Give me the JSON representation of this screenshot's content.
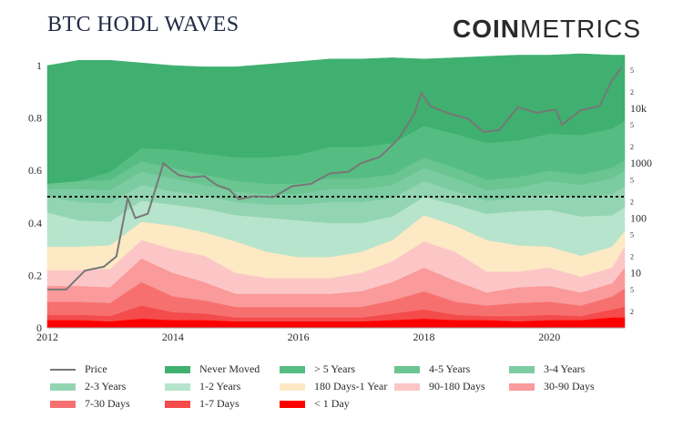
{
  "header": {
    "title": "BTC HODL WAVES",
    "brand_bold": "COIN",
    "brand_light": "METRICS"
  },
  "chart_data": {
    "type": "area",
    "title": "BTC HODL WAVES",
    "x": [
      2012.0,
      2012.5,
      2013.0,
      2013.5,
      2014.0,
      2014.5,
      2015.0,
      2015.5,
      2016.0,
      2016.5,
      2017.0,
      2017.5,
      2018.0,
      2018.5,
      2019.0,
      2019.5,
      2020.0,
      2020.5,
      2021.0,
      2021.2
    ],
    "xticks": [
      "2012",
      "2014",
      "2016",
      "2018",
      "2020"
    ],
    "xtick_values": [
      2012,
      2014,
      2016,
      2018,
      2020
    ],
    "xlim": [
      2012.0,
      2021.2
    ],
    "ylim": [
      0,
      1
    ],
    "yticks": [
      "0",
      "0.2",
      "0.4",
      "0.6",
      "0.8",
      "1"
    ],
    "ytick_values": [
      0,
      0.2,
      0.4,
      0.6,
      0.8,
      1.0
    ],
    "y2_scale": "log",
    "y2lim": [
      1,
      60000
    ],
    "y2_major_labels": [
      "10",
      "100",
      "1000",
      "10k"
    ],
    "y2_major_values": [
      10,
      100,
      1000,
      10000
    ],
    "y2_minor_labels": [
      "2",
      "5",
      "2",
      "5",
      "2",
      "5",
      "2",
      "5",
      "2",
      "5"
    ],
    "y2_minor_values": [
      2,
      5,
      20,
      50,
      200,
      500,
      2000,
      5000,
      20000,
      50000
    ],
    "reference_line": 0.5,
    "series": [
      {
        "name": "< 1 Day",
        "color": "#ff0000",
        "values": [
          0.03,
          0.03,
          0.025,
          0.035,
          0.03,
          0.03,
          0.025,
          0.025,
          0.025,
          0.025,
          0.025,
          0.03,
          0.035,
          0.03,
          0.03,
          0.025,
          0.03,
          0.03,
          0.04,
          0.04
        ]
      },
      {
        "name": "1-7 Days",
        "color": "#f44b4b",
        "values": [
          0.02,
          0.02,
          0.02,
          0.05,
          0.03,
          0.025,
          0.015,
          0.015,
          0.015,
          0.015,
          0.015,
          0.025,
          0.035,
          0.02,
          0.015,
          0.02,
          0.02,
          0.015,
          0.03,
          0.04
        ]
      },
      {
        "name": "7-30 Days",
        "color": "#f77070",
        "values": [
          0.05,
          0.05,
          0.05,
          0.09,
          0.06,
          0.05,
          0.04,
          0.04,
          0.04,
          0.04,
          0.04,
          0.05,
          0.07,
          0.05,
          0.04,
          0.05,
          0.05,
          0.04,
          0.05,
          0.07
        ]
      },
      {
        "name": "30-90 Days",
        "color": "#fa9a9a",
        "values": [
          0.06,
          0.06,
          0.06,
          0.09,
          0.09,
          0.07,
          0.05,
          0.05,
          0.05,
          0.05,
          0.06,
          0.07,
          0.09,
          0.08,
          0.05,
          0.06,
          0.06,
          0.05,
          0.05,
          0.08
        ]
      },
      {
        "name": "90-180 Days",
        "color": "#fcc6c6",
        "values": [
          0.06,
          0.06,
          0.07,
          0.07,
          0.09,
          0.1,
          0.08,
          0.06,
          0.06,
          0.06,
          0.07,
          0.08,
          0.1,
          0.11,
          0.08,
          0.06,
          0.07,
          0.06,
          0.06,
          0.08
        ]
      },
      {
        "name": "180 Days-1 Year",
        "color": "#fde9c4",
        "values": [
          0.09,
          0.09,
          0.09,
          0.07,
          0.09,
          0.09,
          0.12,
          0.1,
          0.08,
          0.08,
          0.08,
          0.08,
          0.1,
          0.1,
          0.12,
          0.1,
          0.08,
          0.08,
          0.08,
          0.06
        ]
      },
      {
        "name": "1-2 Years",
        "color": "#b7e4cc",
        "values": [
          0.13,
          0.1,
          0.09,
          0.08,
          0.08,
          0.09,
          0.1,
          0.13,
          0.14,
          0.13,
          0.11,
          0.09,
          0.07,
          0.08,
          0.1,
          0.13,
          0.14,
          0.15,
          0.12,
          0.09
        ]
      },
      {
        "name": "2-3 Years",
        "color": "#93d5b2",
        "values": [
          0.06,
          0.07,
          0.07,
          0.06,
          0.05,
          0.05,
          0.05,
          0.05,
          0.06,
          0.08,
          0.08,
          0.07,
          0.06,
          0.05,
          0.05,
          0.05,
          0.06,
          0.07,
          0.08,
          0.08
        ]
      },
      {
        "name": "3-4 Years",
        "color": "#7ccca1",
        "values": [
          0.03,
          0.05,
          0.05,
          0.05,
          0.05,
          0.04,
          0.04,
          0.04,
          0.04,
          0.05,
          0.05,
          0.05,
          0.05,
          0.05,
          0.04,
          0.04,
          0.05,
          0.05,
          0.06,
          0.06
        ]
      },
      {
        "name": "4-5 Years",
        "color": "#6ac591",
        "values": [
          0.02,
          0.03,
          0.04,
          0.04,
          0.04,
          0.04,
          0.04,
          0.04,
          0.04,
          0.04,
          0.04,
          0.04,
          0.04,
          0.04,
          0.04,
          0.04,
          0.04,
          0.04,
          0.04,
          0.04
        ]
      },
      {
        "name": "> 5 Years",
        "color": "#56bd82",
        "values": [
          0.0,
          0.0,
          0.03,
          0.05,
          0.07,
          0.08,
          0.09,
          0.1,
          0.11,
          0.12,
          0.12,
          0.12,
          0.12,
          0.13,
          0.14,
          0.14,
          0.14,
          0.15,
          0.15,
          0.15
        ]
      },
      {
        "name": "Never Moved",
        "color": "#3fb06f",
        "values": [
          0.45,
          0.46,
          0.425,
          0.325,
          0.32,
          0.33,
          0.345,
          0.355,
          0.355,
          0.335,
          0.335,
          0.325,
          0.255,
          0.29,
          0.33,
          0.325,
          0.3,
          0.31,
          0.28,
          0.25
        ]
      }
    ],
    "price": {
      "name": "Price",
      "color": "#777777",
      "x": [
        2012.0,
        2012.3,
        2012.6,
        2012.9,
        2013.1,
        2013.28,
        2013.4,
        2013.6,
        2013.85,
        2013.95,
        2014.1,
        2014.3,
        2014.5,
        2014.7,
        2014.9,
        2015.05,
        2015.3,
        2015.6,
        2015.9,
        2016.2,
        2016.5,
        2016.8,
        2017.0,
        2017.3,
        2017.6,
        2017.85,
        2017.96,
        2018.1,
        2018.4,
        2018.7,
        2018.95,
        2019.2,
        2019.5,
        2019.8,
        2020.1,
        2020.2,
        2020.5,
        2020.8,
        2021.0,
        2021.15
      ],
      "values": [
        5,
        5,
        11,
        13,
        20,
        230,
        100,
        120,
        1000,
        800,
        600,
        550,
        580,
        400,
        330,
        220,
        250,
        240,
        380,
        420,
        650,
        700,
        1000,
        1300,
        2800,
        8000,
        19000,
        11000,
        8000,
        6500,
        3700,
        4000,
        10500,
        8300,
        9500,
        5000,
        9200,
        11000,
        33000,
        55000
      ]
    },
    "legend": [
      "Price",
      "Never Moved",
      "> 5 Years",
      "4-5 Years",
      "3-4 Years",
      "2-3 Years",
      "1-2 Years",
      "180 Days-1 Year",
      "90-180 Days",
      "30-90 Days",
      "7-30 Days",
      "1-7 Days",
      "< 1 Day"
    ],
    "legend_placement": "bottom"
  }
}
